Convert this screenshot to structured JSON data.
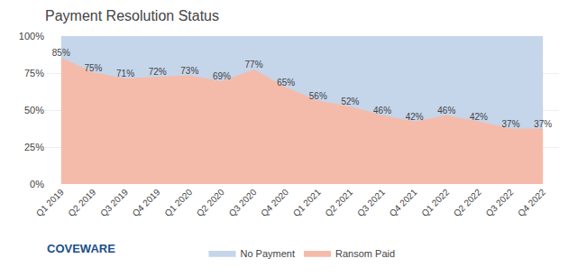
{
  "chart_data": {
    "type": "area",
    "title": "Payment Resolution Status",
    "categories": [
      "Q1 2019",
      "Q2 2019",
      "Q3 2019",
      "Q4 2019",
      "Q1 2020",
      "Q2 2020",
      "Q3 2020",
      "Q4 2020",
      "Q1 2021",
      "Q2 2021",
      "Q3 2021",
      "Q4 2021",
      "Q1 2022",
      "Q2 2022",
      "Q3 2022",
      "Q4 2022"
    ],
    "series": [
      {
        "name": "Ransom Paid",
        "color": "#F4BBAA",
        "values": [
          85,
          75,
          71,
          72,
          73,
          69,
          77,
          65,
          56,
          52,
          46,
          42,
          46,
          42,
          37,
          37
        ],
        "data_labels": true,
        "value_labels": [
          "85%",
          "75%",
          "71%",
          "72%",
          "73%",
          "69%",
          "77%",
          "65%",
          "56%",
          "52%",
          "46%",
          "42%",
          "46%",
          "42%",
          "37%",
          "37%"
        ]
      },
      {
        "name": "No Payment",
        "color": "#C5D5EA",
        "values": [
          15,
          25,
          29,
          28,
          27,
          31,
          23,
          35,
          44,
          48,
          54,
          58,
          54,
          58,
          63,
          63
        ]
      }
    ],
    "stacked": true,
    "ylim": [
      0,
      100
    ],
    "yticks": [
      {
        "value": 0,
        "label": "0%"
      },
      {
        "value": 25,
        "label": "25%"
      },
      {
        "value": 50,
        "label": "50%"
      },
      {
        "value": 75,
        "label": "75%"
      },
      {
        "value": 100,
        "label": "100%"
      }
    ],
    "grid": true,
    "legend": "bottom",
    "annotations": [
      {
        "text": "COVEWARE"
      }
    ]
  }
}
